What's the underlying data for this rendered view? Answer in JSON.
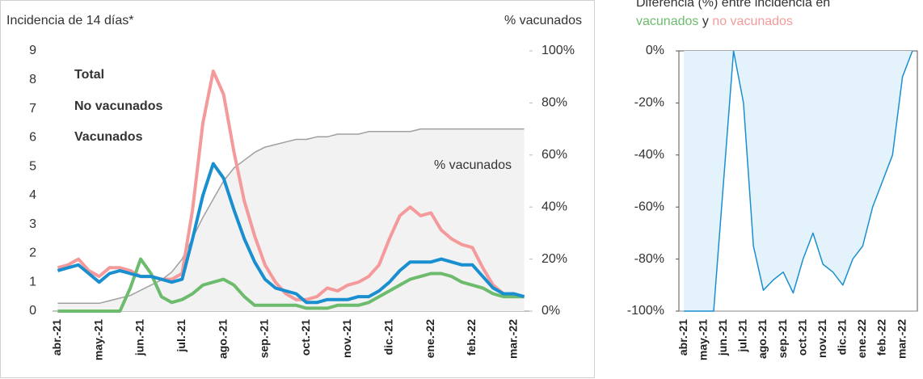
{
  "chart_data": [
    {
      "type": "line",
      "y_label": "Incidencia de 14 días*",
      "y2_label": "% vacunados",
      "categories": [
        "abr.-21",
        null,
        null,
        null,
        "may.-21",
        null,
        null,
        null,
        "jun.-21",
        null,
        null,
        null,
        "jul.-21",
        null,
        null,
        null,
        "ago.-21",
        null,
        null,
        null,
        "sep.-21",
        null,
        null,
        null,
        "oct.-21",
        null,
        null,
        null,
        "nov.-21",
        null,
        null,
        null,
        "dic.-21",
        null,
        null,
        null,
        "ene.-22",
        null,
        null,
        null,
        "feb.-22",
        null,
        null,
        null,
        "mar.-22",
        null
      ],
      "series": [
        {
          "name": "% vacunados",
          "color": "#a0a0a0",
          "axis": "y2",
          "area": true,
          "values": [
            3,
            3,
            3,
            3,
            3,
            4,
            5,
            6,
            8,
            10,
            12,
            15,
            20,
            28,
            36,
            43,
            50,
            55,
            58,
            61,
            63,
            64,
            65,
            66,
            66,
            67,
            67,
            68,
            68,
            68,
            69,
            69,
            69,
            69,
            69,
            70,
            70,
            70,
            70,
            70,
            70,
            70,
            70,
            70,
            70,
            70
          ]
        },
        {
          "name": "No vacunados",
          "color": "#f59a9a",
          "values": [
            1.5,
            1.6,
            1.8,
            1.4,
            1.2,
            1.5,
            1.5,
            1.4,
            1.2,
            1.2,
            1.1,
            1.1,
            1.3,
            3.5,
            6.5,
            8.3,
            7.5,
            5.5,
            3.8,
            2.6,
            1.6,
            1.0,
            0.6,
            0.4,
            0.4,
            0.5,
            0.8,
            0.7,
            0.9,
            1.0,
            1.2,
            1.6,
            2.5,
            3.3,
            3.6,
            3.3,
            3.4,
            2.8,
            2.5,
            2.3,
            2.2,
            1.5,
            0.9,
            0.6,
            0.5,
            0.5
          ]
        },
        {
          "name": "Vacunados",
          "color": "#6dbb6d",
          "values": [
            0,
            0,
            0,
            0,
            0,
            0,
            0,
            0.8,
            1.8,
            1.3,
            0.5,
            0.3,
            0.4,
            0.6,
            0.9,
            1.0,
            1.1,
            0.9,
            0.5,
            0.2,
            0.2,
            0.2,
            0.2,
            0.2,
            0.1,
            0.1,
            0.1,
            0.2,
            0.2,
            0.2,
            0.3,
            0.5,
            0.7,
            0.9,
            1.1,
            1.2,
            1.3,
            1.3,
            1.2,
            1.0,
            0.9,
            0.8,
            0.6,
            0.5,
            0.5,
            0.5
          ]
        },
        {
          "name": "Total",
          "color": "#1a8fd0",
          "values": [
            1.4,
            1.5,
            1.6,
            1.3,
            1.0,
            1.3,
            1.4,
            1.3,
            1.2,
            1.2,
            1.1,
            1.0,
            1.1,
            2.5,
            4.0,
            5.1,
            4.6,
            3.5,
            2.5,
            1.7,
            1.1,
            0.8,
            0.7,
            0.6,
            0.3,
            0.3,
            0.4,
            0.4,
            0.4,
            0.5,
            0.5,
            0.7,
            1.0,
            1.4,
            1.7,
            1.7,
            1.7,
            1.8,
            1.7,
            1.6,
            1.6,
            1.2,
            0.8,
            0.6,
            0.6,
            0.5
          ]
        }
      ],
      "ylim": [
        0,
        9
      ],
      "yticks": [
        0,
        1,
        2,
        3,
        4,
        5,
        6,
        7,
        8,
        9
      ],
      "y2lim": [
        0,
        100
      ],
      "y2ticks": [
        {
          "value": 0,
          "label": "0%"
        },
        {
          "value": 20,
          "label": "20%"
        },
        {
          "value": 40,
          "label": "40%"
        },
        {
          "value": 60,
          "label": "60%"
        },
        {
          "value": 80,
          "label": "80%"
        },
        {
          "value": 100,
          "label": "100%"
        }
      ]
    },
    {
      "type": "line",
      "title_parts": [
        {
          "text": "Diferencia (%) entre incidencia en",
          "color": "#333333"
        },
        {
          "text": "vacunados",
          "color": "#6dbb6d"
        },
        {
          "text": "y",
          "color": "#333333"
        },
        {
          "text": "no vacunados",
          "color": "#f59a9a"
        }
      ],
      "categories": [
        "abr.-21",
        null,
        "may.-21",
        null,
        "jun.-21",
        null,
        "jul.-21",
        null,
        "ago.-21",
        null,
        "sep.-21",
        null,
        "oct.-21",
        null,
        "nov.-21",
        null,
        "dic.-21",
        null,
        "ene.-22",
        null,
        "feb.-22",
        null,
        "mar.-22",
        null
      ],
      "series": [
        {
          "color": "#1a8fd0",
          "area": true,
          "values": [
            -100,
            -100,
            -100,
            -100,
            -50,
            0,
            -20,
            -75,
            -92,
            -88,
            -85,
            -93,
            -80,
            -70,
            -82,
            -85,
            -90,
            -80,
            -75,
            -60,
            -50,
            -40,
            -10,
            0
          ]
        }
      ],
      "ylim": [
        -100,
        0
      ],
      "yticks": [
        {
          "value": -100,
          "label": "-100%"
        },
        {
          "value": -80,
          "label": "-80%"
        },
        {
          "value": -60,
          "label": "-60%"
        },
        {
          "value": -40,
          "label": "-40%"
        },
        {
          "value": -20,
          "label": "-20%"
        },
        {
          "value": 0,
          "label": "0%"
        }
      ]
    }
  ]
}
